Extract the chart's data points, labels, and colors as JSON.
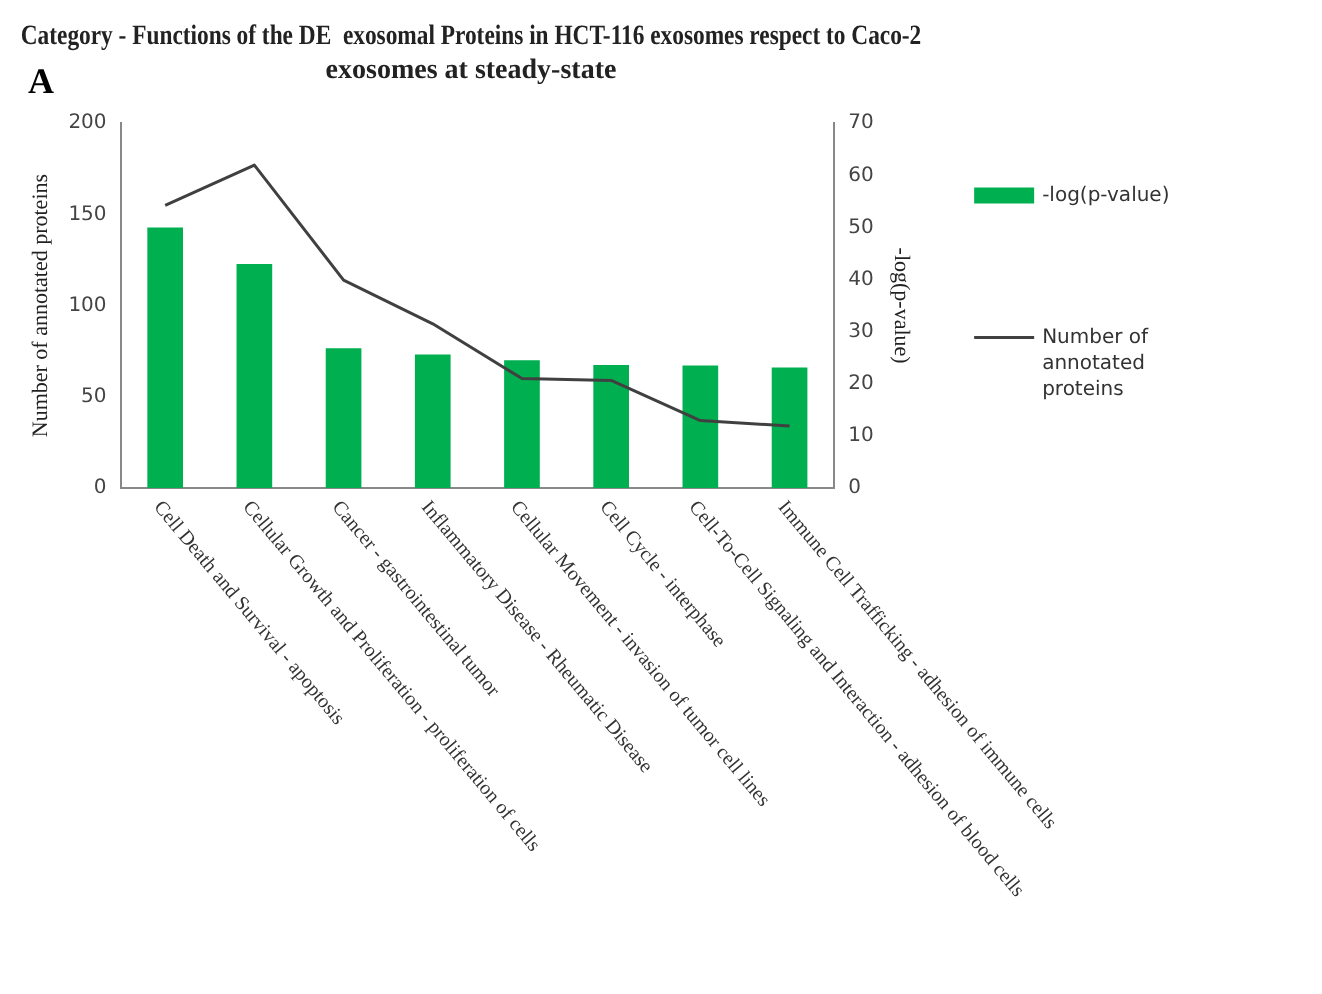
{
  "chart_data": {
    "type": "bar",
    "title": "Category - Functions of the DE  exosomal Proteins in HCT-116 exosomes respect to Caco-2 exosomes at steady-state",
    "annotations": [
      "A"
    ],
    "categories": [
      "Cell Death and Survival - apoptosis",
      "Cellular Growth and Proliferation - proliferation of cells",
      "Cancer - gastrointestinal tumor",
      "Inflammatory Disease - Rheumatic Disease",
      "Cellular Movement - invasion of tumor cell lines",
      "Cell Cycle - interphase",
      "Cell-To-Cell Signaling and Interaction - adhesion of blood cells",
      "Immune Cell Trafficking - adhesion of immune cells"
    ],
    "series": [
      {
        "name": "-log(p-value)",
        "axis": "y2",
        "color": "#00b050",
        "values": [
          50,
          43,
          26.8,
          25.6,
          24.5,
          23.6,
          23.5,
          23.1
        ]
      },
      {
        "name": "Number of annotated proteins",
        "type": "line",
        "axis": "y",
        "color": "#404040",
        "values": [
          155,
          177,
          114,
          90,
          60,
          59,
          37,
          34
        ]
      }
    ],
    "ylabel": "Number of annotated proteins",
    "y2label": "-log(p-value)",
    "ylim": [
      0,
      200
    ],
    "yticks": [
      0,
      50,
      100,
      150,
      200
    ],
    "y2lim": [
      0,
      70
    ],
    "y2ticks": [
      0,
      10,
      20,
      30,
      40,
      50,
      60,
      70
    ],
    "grid": false,
    "legend": "right",
    "marker": "none"
  }
}
